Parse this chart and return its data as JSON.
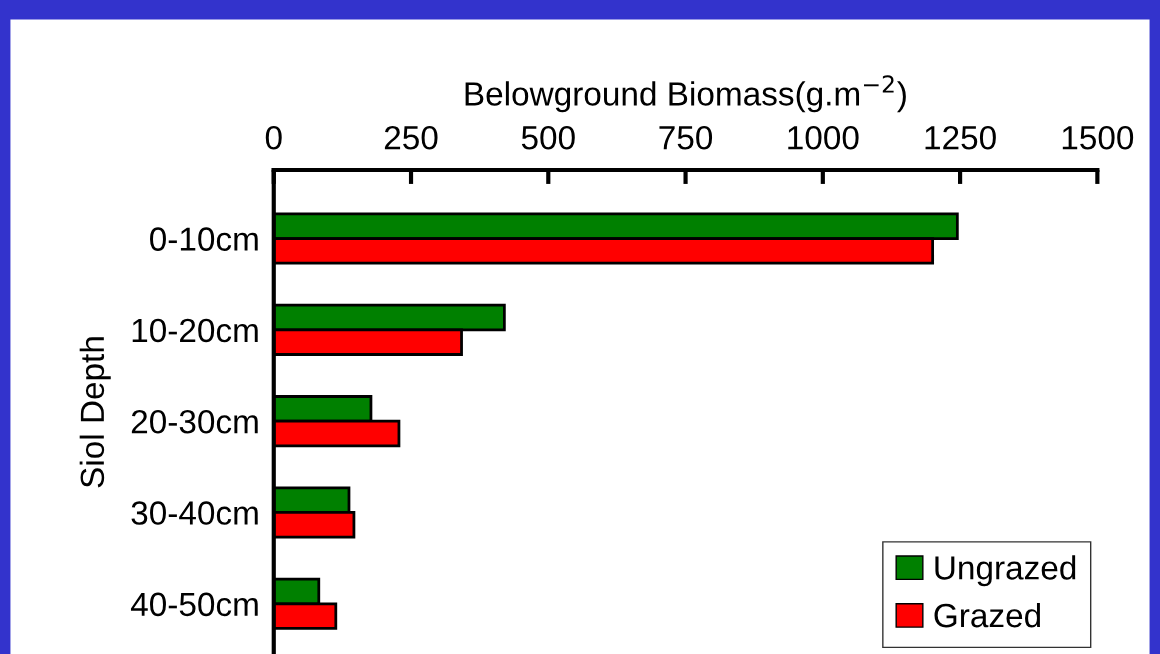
{
  "chart_data": {
    "type": "bar",
    "orientation": "horizontal",
    "xlabel": "Belowground Biomass(g.m$^{−2}$)",
    "ylabel": "Siol Depth",
    "categories": [
      "0-10cm",
      "10-20cm",
      "20-30cm",
      "30-40cm",
      "40-50cm"
    ],
    "series": [
      {
        "name": "Ungrazed",
        "color": "#008000",
        "values": [
          1245,
          420,
          177,
          137,
          82
        ]
      },
      {
        "name": "Grazed",
        "color": "#ff0000",
        "values": [
          1200,
          342,
          228,
          146,
          113
        ]
      }
    ],
    "xlim": [
      0,
      1500
    ],
    "xticks": [
      0,
      250,
      500,
      750,
      1000,
      1250,
      1500
    ],
    "grid": false,
    "legend": "bottom right"
  }
}
